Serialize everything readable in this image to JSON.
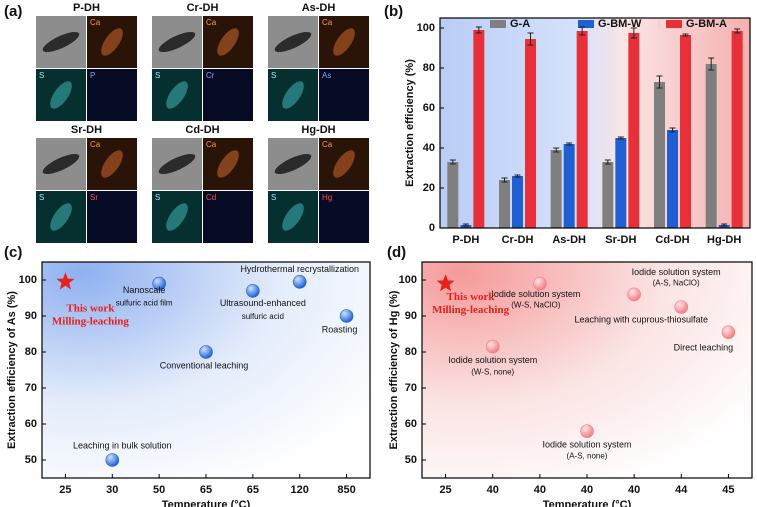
{
  "panel_a": {
    "label": "(a)",
    "samples": [
      {
        "name": "P-DH",
        "maps": [
          "Ca",
          "S",
          "P"
        ]
      },
      {
        "name": "Cr-DH",
        "maps": [
          "Ca",
          "S",
          "Cr"
        ]
      },
      {
        "name": "As-DH",
        "maps": [
          "Ca",
          "S",
          "As"
        ]
      },
      {
        "name": "Sr-DH",
        "maps": [
          "Ca",
          "S",
          "Sr"
        ]
      },
      {
        "name": "Cd-DH",
        "maps": [
          "Ca",
          "S",
          "Cd"
        ]
      },
      {
        "name": "Hg-DH",
        "maps": [
          "Ca",
          "S",
          "Hg"
        ]
      }
    ]
  },
  "chart_data": [
    {
      "type": "bar",
      "panel_label": "(b)",
      "categories": [
        "P-DH",
        "Cr-DH",
        "As-DH",
        "Sr-DH",
        "Cd-DH",
        "Hg-DH"
      ],
      "series": [
        {
          "name": "G-A",
          "color": "#7f7f7f",
          "values": [
            33,
            24,
            39,
            33,
            73,
            82
          ],
          "errors": [
            1,
            1,
            1,
            1,
            3,
            3
          ]
        },
        {
          "name": "G-BM-W",
          "color": "#1f5fd1",
          "values": [
            1.5,
            26,
            42,
            45,
            49,
            1.5
          ],
          "errors": [
            0.5,
            0.5,
            0.5,
            0.5,
            1,
            0.5
          ]
        },
        {
          "name": "G-BM-A",
          "color": "#e8303a",
          "values": [
            99,
            94.5,
            98.5,
            97.5,
            96.5,
            98.5
          ],
          "errors": [
            1.5,
            3,
            2,
            2.5,
            0.5,
            1
          ]
        }
      ],
      "ylim": [
        0,
        105
      ],
      "yticks": [
        0,
        20,
        40,
        60,
        80,
        100
      ],
      "ylabel": "Extraction efficiency (%)",
      "legend": "top"
    },
    {
      "type": "scatter",
      "panel_label": "(c)",
      "categories": [
        "25",
        "30",
        "50",
        "65",
        "65",
        "120",
        "850"
      ],
      "values": [
        99.5,
        50,
        99,
        80,
        97,
        99.5,
        90
      ],
      "markers": [
        "star",
        "circle",
        "circle",
        "circle",
        "circle",
        "circle",
        "circle"
      ],
      "point_labels": [
        [
          "This work",
          "Milling-leaching"
        ],
        [
          "Leaching in bulk solution"
        ],
        [
          "Nanoscale",
          "sulfuric acid film"
        ],
        [
          "Conventional leaching"
        ],
        [
          "Ultrasound-enhanced",
          "sulfuric acid"
        ],
        [
          "Hydrothermal recrystallization"
        ],
        [
          "Roasting"
        ]
      ],
      "color": "#1f63d6",
      "highlight_color": "#e8201c",
      "ylim": [
        45,
        105
      ],
      "yticks": [
        50,
        60,
        70,
        80,
        90,
        100
      ],
      "xlabel": "Temperature (°C)",
      "ylabel": "Extraction efficiency of As (%)"
    },
    {
      "type": "scatter",
      "panel_label": "(d)",
      "categories": [
        "25",
        "40",
        "40",
        "40",
        "40",
        "44",
        "45"
      ],
      "values": [
        99,
        81.5,
        99,
        58,
        96,
        92.5,
        85.5
      ],
      "markers": [
        "star",
        "circle",
        "circle",
        "circle",
        "circle",
        "circle",
        "circle"
      ],
      "point_labels": [
        [
          "This work",
          "Milling-leaching"
        ],
        [
          "Iodide solution system",
          "(W-S, none)"
        ],
        [
          "Iodide solution system",
          "(W-S, NaClO)"
        ],
        [
          "Iodide solution system",
          "(A-S, none)"
        ],
        [
          "Iodide solution system",
          "(A-S, NaClO)"
        ],
        [
          "Leaching with cuprous-thiosulfate"
        ],
        [
          "Direct leaching"
        ]
      ],
      "color": "#f07f86",
      "highlight_color": "#e8201c",
      "ylim": [
        45,
        105
      ],
      "yticks": [
        50,
        60,
        70,
        80,
        90,
        100
      ],
      "xlabel": "Temperature (°C)",
      "ylabel": "Extraction efficiency of Hg (%)"
    }
  ]
}
